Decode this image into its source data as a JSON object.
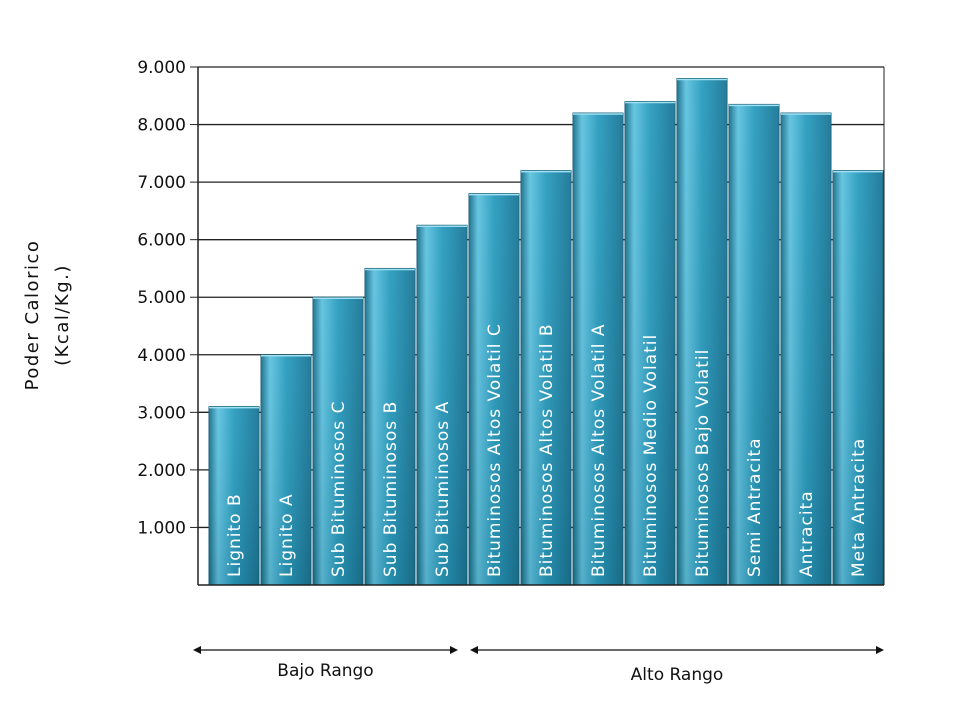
{
  "chart_data": {
    "type": "bar",
    "title": "",
    "ylabel_line1": "Poder Calorico",
    "ylabel_line2": "(Kcal/Kg.)",
    "xlabel": "",
    "ylim": [
      0,
      9000
    ],
    "yticks": [
      {
        "value": 1000,
        "label": "1.000"
      },
      {
        "value": 2000,
        "label": "2.000"
      },
      {
        "value": 3000,
        "label": "3.000"
      },
      {
        "value": 4000,
        "label": "4.000"
      },
      {
        "value": 5000,
        "label": "5.000"
      },
      {
        "value": 6000,
        "label": "6.000"
      },
      {
        "value": 7000,
        "label": "7.000"
      },
      {
        "value": 8000,
        "label": "8.000"
      },
      {
        "value": 9000,
        "label": "9.000"
      }
    ],
    "grid": true,
    "categories": [
      "Lignito B",
      "Lignito A",
      "Sub Bituminosos C",
      "Sub Bituminosos B",
      "Sub Bituminosos A",
      "Bituminosos Altos Volatil C",
      "Bituminosos Altos Volatil B",
      "Bituminosos Altos Volatil A",
      "Bituminosos Medio Volatil",
      "Bituminosos Bajo Volatil",
      "Semi Antracita",
      "Antracita",
      "Meta Antracita"
    ],
    "values": [
      3100,
      4000,
      5000,
      5500,
      6250,
      6800,
      7200,
      8200,
      8400,
      8800,
      8350,
      8200,
      7200
    ],
    "bar_color": "#2a9cbf",
    "ranges": [
      {
        "label": "Bajo Rango",
        "from": 0,
        "to": 4
      },
      {
        "label": "Alto Rango",
        "from": 5,
        "to": 12
      }
    ]
  }
}
